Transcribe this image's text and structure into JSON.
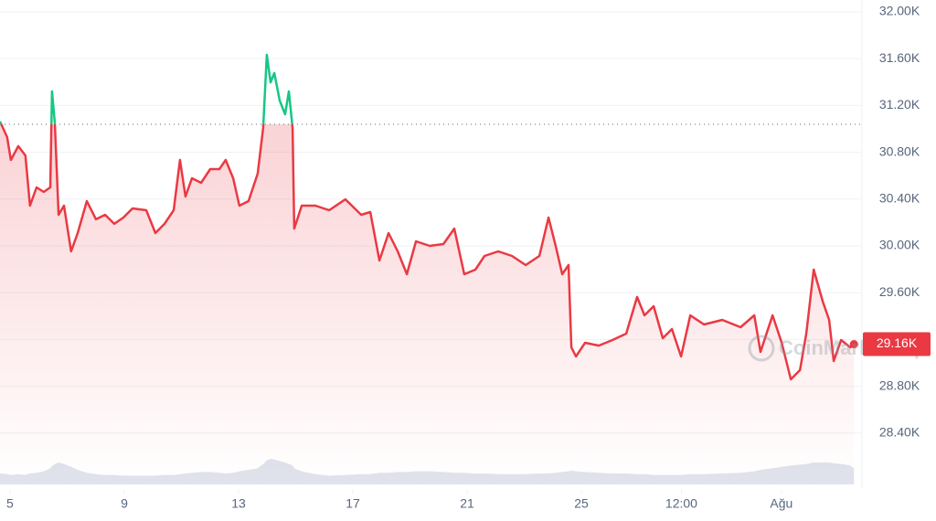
{
  "chart_data": {
    "type": "line",
    "x": [
      4.65,
      4.9,
      5.03,
      5.29,
      5.54,
      5.7,
      5.93,
      6.18,
      6.41,
      6.47,
      6.57,
      6.7,
      6.89,
      7.14,
      7.37,
      7.69,
      8.01,
      8.33,
      8.65,
      8.97,
      9.29,
      9.77,
      10.09,
      10.41,
      10.73,
      10.95,
      11.14,
      11.37,
      11.69,
      12.01,
      12.33,
      12.55,
      12.81,
      13.03,
      13.35,
      13.67,
      13.86,
      13.99,
      14.12,
      14.25,
      14.44,
      14.63,
      14.76,
      14.89,
      14.95,
      15.21,
      15.69,
      16.17,
      16.74,
      17.29,
      17.61,
      17.93,
      18.25,
      18.57,
      18.89,
      19.21,
      19.69,
      20.17,
      20.55,
      20.9,
      21.29,
      21.61,
      22.09,
      22.57,
      23.05,
      23.53,
      23.85,
      24.1,
      24.33,
      24.55,
      24.65,
      24.81,
      25.13,
      25.61,
      26.09,
      26.57,
      26.95,
      27.21,
      27.53,
      27.85,
      28.17,
      28.49,
      28.81,
      29.29,
      29.93,
      30.57,
      31.05,
      31.27,
      31.69,
      32.01,
      32.33,
      32.65,
      32.87,
      33.13,
      33.45,
      33.67,
      33.83,
      34.09,
      34.41,
      34.54
    ],
    "series": [
      {
        "name": "price",
        "color": "#ea3943",
        "color_above": "#16c784",
        "values": [
          31063,
          30930,
          30734,
          30852,
          30773,
          30344,
          30500,
          30461,
          30500,
          31320,
          31047,
          30266,
          30344,
          29953,
          30109,
          30383,
          30227,
          30266,
          30188,
          30242,
          30320,
          30305,
          30109,
          30188,
          30305,
          30734,
          30422,
          30578,
          30539,
          30656,
          30656,
          30734,
          30578,
          30344,
          30383,
          30617,
          31008,
          31633,
          31398,
          31477,
          31242,
          31125,
          31320,
          31008,
          30148,
          30344,
          30344,
          30305,
          30398,
          30266,
          30289,
          29875,
          30109,
          29953,
          29758,
          30039,
          30000,
          30016,
          30148,
          29758,
          29797,
          29914,
          29953,
          29914,
          29836,
          29914,
          30242,
          30000,
          29758,
          29836,
          29133,
          29055,
          29172,
          29148,
          29195,
          29250,
          29563,
          29406,
          29484,
          29211,
          29289,
          29055,
          29406,
          29328,
          29367,
          29305,
          29406,
          29094,
          29406,
          29172,
          28859,
          28938,
          29250,
          29797,
          29523,
          29367,
          29016,
          29195,
          29133,
          29172
        ]
      },
      {
        "name": "volume",
        "color": "#c9d1e0",
        "axis": "y2",
        "values": [
          15,
          14,
          13,
          14,
          13,
          15,
          16,
          18,
          22,
          25,
          28,
          30,
          28,
          24,
          20,
          16,
          14,
          13,
          13,
          12,
          12,
          12,
          12,
          13,
          13,
          14,
          15,
          16,
          17,
          17,
          16,
          15,
          16,
          18,
          20,
          22,
          28,
          33,
          35,
          34,
          32,
          30,
          28,
          26,
          22,
          18,
          14,
          12,
          13,
          14,
          14,
          16,
          16,
          17,
          17,
          18,
          18,
          17,
          16,
          16,
          15,
          15,
          14,
          14,
          14,
          15,
          15,
          16,
          17,
          18,
          19,
          18,
          17,
          16,
          15,
          15,
          14,
          14,
          13,
          13,
          13,
          13,
          14,
          14,
          15,
          16,
          18,
          20,
          22,
          24,
          26,
          27,
          28,
          30,
          30,
          30,
          29,
          28,
          26,
          22
        ]
      }
    ],
    "xlim": [
      4.65,
      34.82
    ],
    "xticks": [
      {
        "value": 5,
        "label": "5"
      },
      {
        "value": 9,
        "label": "9"
      },
      {
        "value": 13,
        "label": "13"
      },
      {
        "value": 17,
        "label": "17"
      },
      {
        "value": 21,
        "label": "21"
      },
      {
        "value": 25,
        "label": "25"
      },
      {
        "value": 28.5,
        "label": "12:00"
      },
      {
        "value": 32,
        "label": "Ağu"
      }
    ],
    "ylim": [
      28000,
      32000
    ],
    "yticks": [
      {
        "value": 28400,
        "label": "28.40K"
      },
      {
        "value": 28800,
        "label": "28.80K"
      },
      {
        "value": 29200,
        "label": "29.20K"
      },
      {
        "value": 29600,
        "label": "29.60K"
      },
      {
        "value": 30000,
        "label": "30.00K"
      },
      {
        "value": 30400,
        "label": "30.40K"
      },
      {
        "value": 30800,
        "label": "30.80K"
      },
      {
        "value": 31200,
        "label": "31.20K"
      },
      {
        "value": 31600,
        "label": "31.60K"
      },
      {
        "value": 32000,
        "label": "32.00K"
      }
    ],
    "y2lim": [
      0,
      100
    ],
    "reference_line": 31039,
    "last_price": {
      "value": 29160,
      "label": "29.16K"
    },
    "watermark": "CoinMarketCap",
    "grid": true
  }
}
